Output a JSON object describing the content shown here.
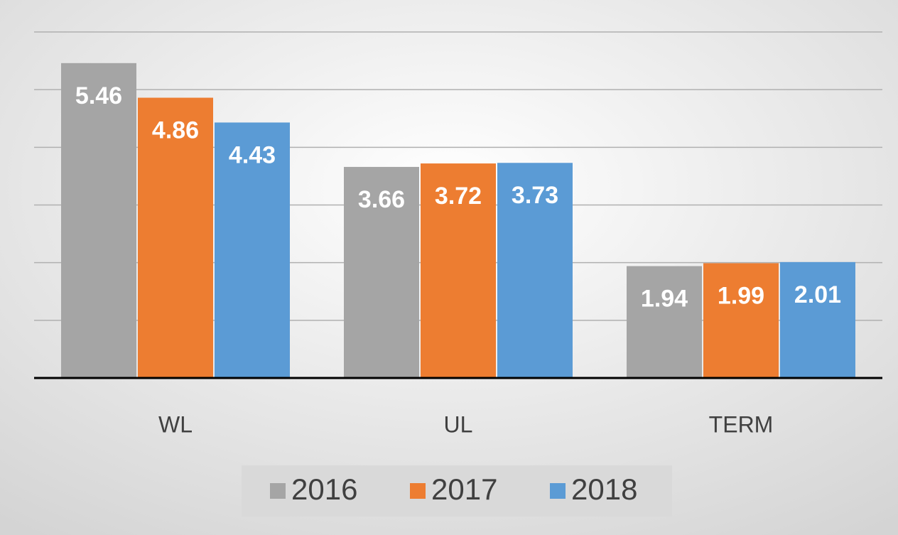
{
  "chart_data": {
    "type": "bar",
    "categories": [
      "WL",
      "UL",
      "TERM"
    ],
    "series": [
      {
        "name": "2016",
        "color": "#a5a5a5",
        "values": [
          5.46,
          3.66,
          1.94
        ]
      },
      {
        "name": "2017",
        "color": "#ed7d31",
        "values": [
          4.86,
          3.72,
          1.99
        ]
      },
      {
        "name": "2018",
        "color": "#5b9bd5",
        "values": [
          4.43,
          3.73,
          2.01
        ]
      }
    ],
    "ylim": [
      0,
      6
    ],
    "yticks": [
      0,
      1,
      2,
      3,
      4,
      5,
      6
    ],
    "grid": true,
    "legend": "bottom"
  }
}
